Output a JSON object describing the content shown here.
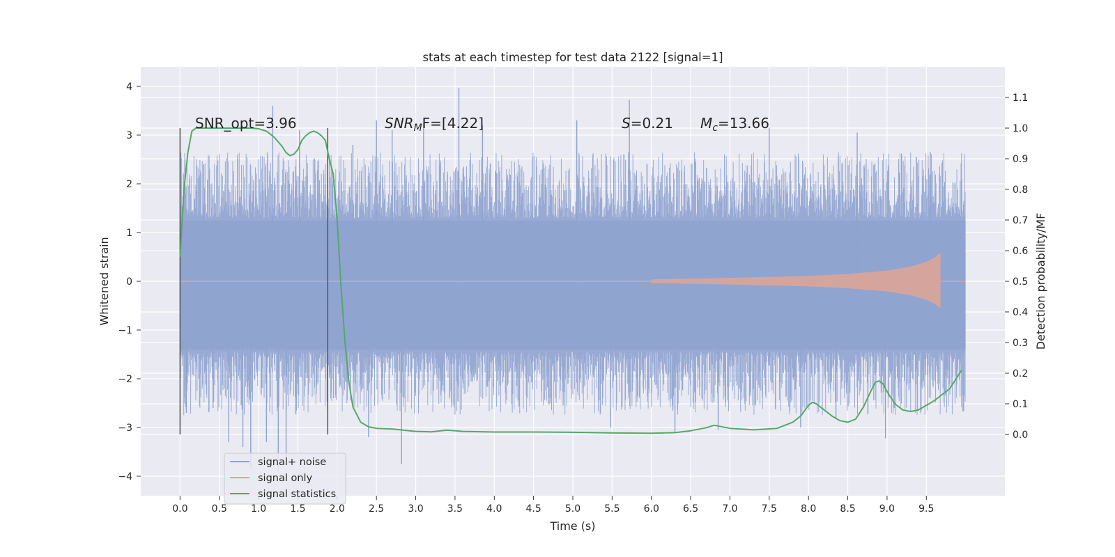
{
  "chart_data": {
    "type": "line",
    "title": "stats at each timestep for test data 2122 [signal=1]",
    "xlabel": "Time (s)",
    "ylabel_left": "Whitened strain",
    "ylabel_right": "Detection probability/MF",
    "xlim": [
      -0.5,
      10.5
    ],
    "ylim_left": [
      -4.4,
      4.4
    ],
    "ylim_right": [
      -0.2,
      1.2
    ],
    "x_ticks": [
      "0.0",
      "0.5",
      "1.0",
      "1.5",
      "2.0",
      "2.5",
      "3.0",
      "3.5",
      "4.0",
      "4.5",
      "5.0",
      "5.5",
      "6.0",
      "6.5",
      "7.0",
      "7.5",
      "8.0",
      "8.5",
      "9.0",
      "9.5"
    ],
    "y_ticks_left": [
      "−4",
      "−3",
      "−2",
      "−1",
      "0",
      "1",
      "2",
      "3",
      "4"
    ],
    "y_ticks_right": [
      "0.0",
      "0.1",
      "0.2",
      "0.3",
      "0.4",
      "0.5",
      "0.6",
      "0.7",
      "0.8",
      "0.9",
      "1.0",
      "1.1"
    ],
    "grid": true,
    "legend_placement": "lower-left",
    "annotations": {
      "snr_opt": "SNR_opt=3.96",
      "snr_mf_sym": "SNR",
      "snr_mf_sub": "M",
      "snr_mf_rest": "F=[4.22]",
      "s_sym": "S",
      "s_rest": "=0.21",
      "mc_sym": "M",
      "mc_sub": "c",
      "mc_rest": "=13.66"
    },
    "vlines_x": [
      0.0,
      1.88
    ],
    "series": [
      {
        "name": "signal+ noise",
        "color": "#8fa3cf",
        "axis": "left",
        "description_values": {
          "x_range": [
            0.0,
            10.0
          ],
          "typical_band": [
            -1.4,
            1.25
          ],
          "max_spike": 3.97,
          "min_spike": -3.75
        },
        "spikes": [
          {
            "x": 0.03,
            "y": 1.55
          },
          {
            "x": 0.08,
            "y": -2.7
          },
          {
            "x": 0.3,
            "y": 2.4
          },
          {
            "x": 0.42,
            "y": -2.6
          },
          {
            "x": 0.62,
            "y": -3.3
          },
          {
            "x": 0.8,
            "y": -3.4
          },
          {
            "x": 0.9,
            "y": -3.85
          },
          {
            "x": 1.1,
            "y": -3.3
          },
          {
            "x": 1.18,
            "y": 3.6
          },
          {
            "x": 1.25,
            "y": -3.9
          },
          {
            "x": 1.35,
            "y": -3.6
          },
          {
            "x": 1.52,
            "y": 3.1
          },
          {
            "x": 1.83,
            "y": 2.2
          },
          {
            "x": 2.2,
            "y": 2.8
          },
          {
            "x": 2.4,
            "y": -3.2
          },
          {
            "x": 2.5,
            "y": 3.3
          },
          {
            "x": 2.7,
            "y": 3.1
          },
          {
            "x": 2.82,
            "y": -3.75
          },
          {
            "x": 3.1,
            "y": 3.25
          },
          {
            "x": 3.55,
            "y": 3.97
          },
          {
            "x": 3.85,
            "y": 3.2
          },
          {
            "x": 5.05,
            "y": 3.3
          },
          {
            "x": 5.48,
            "y": -3.0
          },
          {
            "x": 5.72,
            "y": 3.72
          },
          {
            "x": 6.3,
            "y": -3.1
          },
          {
            "x": 6.85,
            "y": -3.05
          },
          {
            "x": 7.5,
            "y": 3.15
          },
          {
            "x": 7.9,
            "y": -3.0
          },
          {
            "x": 8.35,
            "y": -2.8
          },
          {
            "x": 8.62,
            "y": 3.05
          },
          {
            "x": 8.98,
            "y": -3.22
          },
          {
            "x": 9.55,
            "y": 2.65
          }
        ]
      },
      {
        "name": "signal only",
        "color": "#e1a693",
        "axis": "left",
        "envelope": [
          [
            6.0,
            0.04
          ],
          [
            7.0,
            0.07
          ],
          [
            8.0,
            0.11
          ],
          [
            8.5,
            0.15
          ],
          [
            9.0,
            0.22
          ],
          [
            9.3,
            0.3
          ],
          [
            9.5,
            0.4
          ],
          [
            9.62,
            0.5
          ],
          [
            9.67,
            0.58
          ]
        ],
        "end_x": 9.68
      },
      {
        "name": "signal statistics",
        "color": "#55a868",
        "axis": "right",
        "x": [
          0.0,
          0.05,
          0.1,
          0.15,
          0.2,
          0.3,
          0.5,
          0.7,
          0.9,
          1.0,
          1.1,
          1.2,
          1.3,
          1.35,
          1.4,
          1.45,
          1.5,
          1.55,
          1.6,
          1.65,
          1.7,
          1.75,
          1.8,
          1.85,
          1.9,
          1.95,
          2.0,
          2.05,
          2.1,
          2.15,
          2.2,
          2.3,
          2.4,
          2.5,
          2.7,
          3.0,
          3.2,
          3.4,
          3.6,
          4.0,
          4.5,
          5.0,
          5.5,
          6.0,
          6.3,
          6.5,
          6.7,
          6.8,
          7.0,
          7.3,
          7.6,
          7.8,
          7.9,
          8.0,
          8.05,
          8.1,
          8.2,
          8.3,
          8.4,
          8.5,
          8.6,
          8.7,
          8.8,
          8.85,
          8.9,
          8.95,
          9.0,
          9.1,
          9.2,
          9.3,
          9.4,
          9.6,
          9.8,
          9.95
        ],
        "y": [
          0.58,
          0.8,
          0.92,
          0.99,
          1.0,
          1.0,
          1.0,
          1.0,
          1.0,
          0.998,
          0.99,
          0.97,
          0.94,
          0.92,
          0.91,
          0.915,
          0.93,
          0.96,
          0.975,
          0.985,
          0.99,
          0.985,
          0.975,
          0.96,
          0.9,
          0.85,
          0.7,
          0.48,
          0.3,
          0.17,
          0.09,
          0.04,
          0.025,
          0.02,
          0.018,
          0.01,
          0.0085,
          0.014,
          0.01,
          0.008,
          0.008,
          0.007,
          0.005,
          0.004,
          0.006,
          0.012,
          0.022,
          0.03,
          0.02,
          0.015,
          0.02,
          0.04,
          0.06,
          0.095,
          0.105,
          0.1,
          0.08,
          0.06,
          0.045,
          0.04,
          0.05,
          0.09,
          0.145,
          0.17,
          0.175,
          0.165,
          0.14,
          0.1,
          0.08,
          0.075,
          0.08,
          0.11,
          0.15,
          0.21
        ]
      }
    ]
  }
}
